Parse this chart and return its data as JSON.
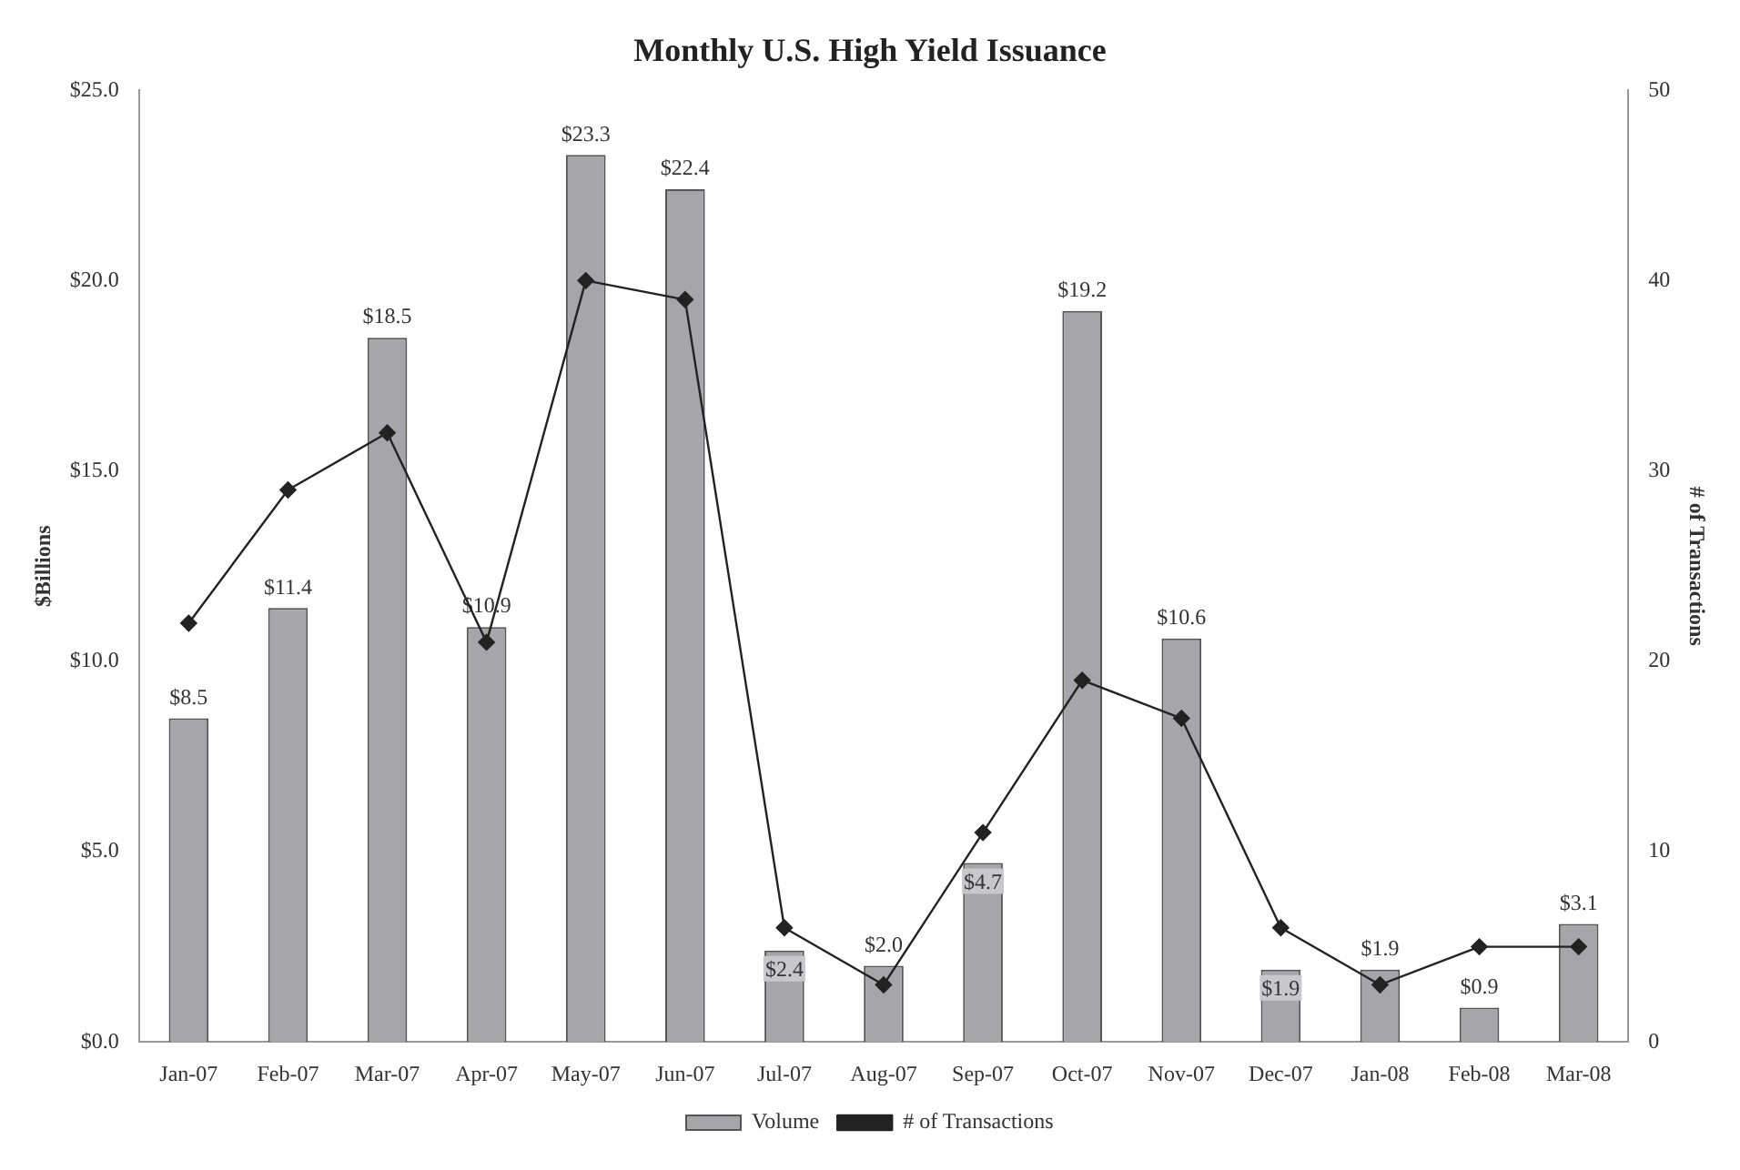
{
  "chart_data": {
    "type": "bar",
    "title": "Monthly U.S. High Yield Issuance",
    "ylabel": "$Billions",
    "y2label": "# of Transactions",
    "categories": [
      "Jan-07",
      "Feb-07",
      "Mar-07",
      "Apr-07",
      "May-07",
      "Jun-07",
      "Jul-07",
      "Aug-07",
      "Sep-07",
      "Oct-07",
      "Nov-07",
      "Dec-07",
      "Jan-08",
      "Feb-08",
      "Mar-08"
    ],
    "series": [
      {
        "name": "Volume",
        "color": "#a5a5aa",
        "values": [
          8.5,
          11.4,
          18.5,
          10.9,
          23.3,
          22.4,
          2.4,
          2.0,
          4.7,
          19.2,
          10.6,
          1.9,
          1.9,
          0.9,
          3.1
        ],
        "value_labels": [
          "$8.5",
          "$11.4",
          "$18.5",
          "$10.9",
          "$23.3",
          "$22.4",
          "$2.4",
          "$2.0",
          "$4.7",
          "$19.2",
          "$10.6",
          "$1.9",
          "$1.9",
          "$0.9",
          "$3.1"
        ]
      },
      {
        "name": "# of Transactions",
        "type": "line",
        "axis": "y2",
        "color": "#222222",
        "marker": "diamond",
        "values": [
          22,
          29,
          32,
          21,
          40,
          39,
          6,
          3,
          11,
          19,
          17,
          6,
          3,
          5,
          5
        ]
      }
    ],
    "ylim": [
      0,
      25
    ],
    "yticks": [
      {
        "value": 0,
        "label": "$0.0"
      },
      {
        "value": 5,
        "label": "$5.0"
      },
      {
        "value": 10,
        "label": "$10.0"
      },
      {
        "value": 15,
        "label": "$15.0"
      },
      {
        "value": 20,
        "label": "$20.0"
      },
      {
        "value": 25,
        "label": "$25.0"
      }
    ],
    "y2lim": [
      0,
      50
    ],
    "y2ticks": [
      0,
      10,
      20,
      30,
      40,
      50
    ],
    "grid": false,
    "legend": "bottom"
  }
}
